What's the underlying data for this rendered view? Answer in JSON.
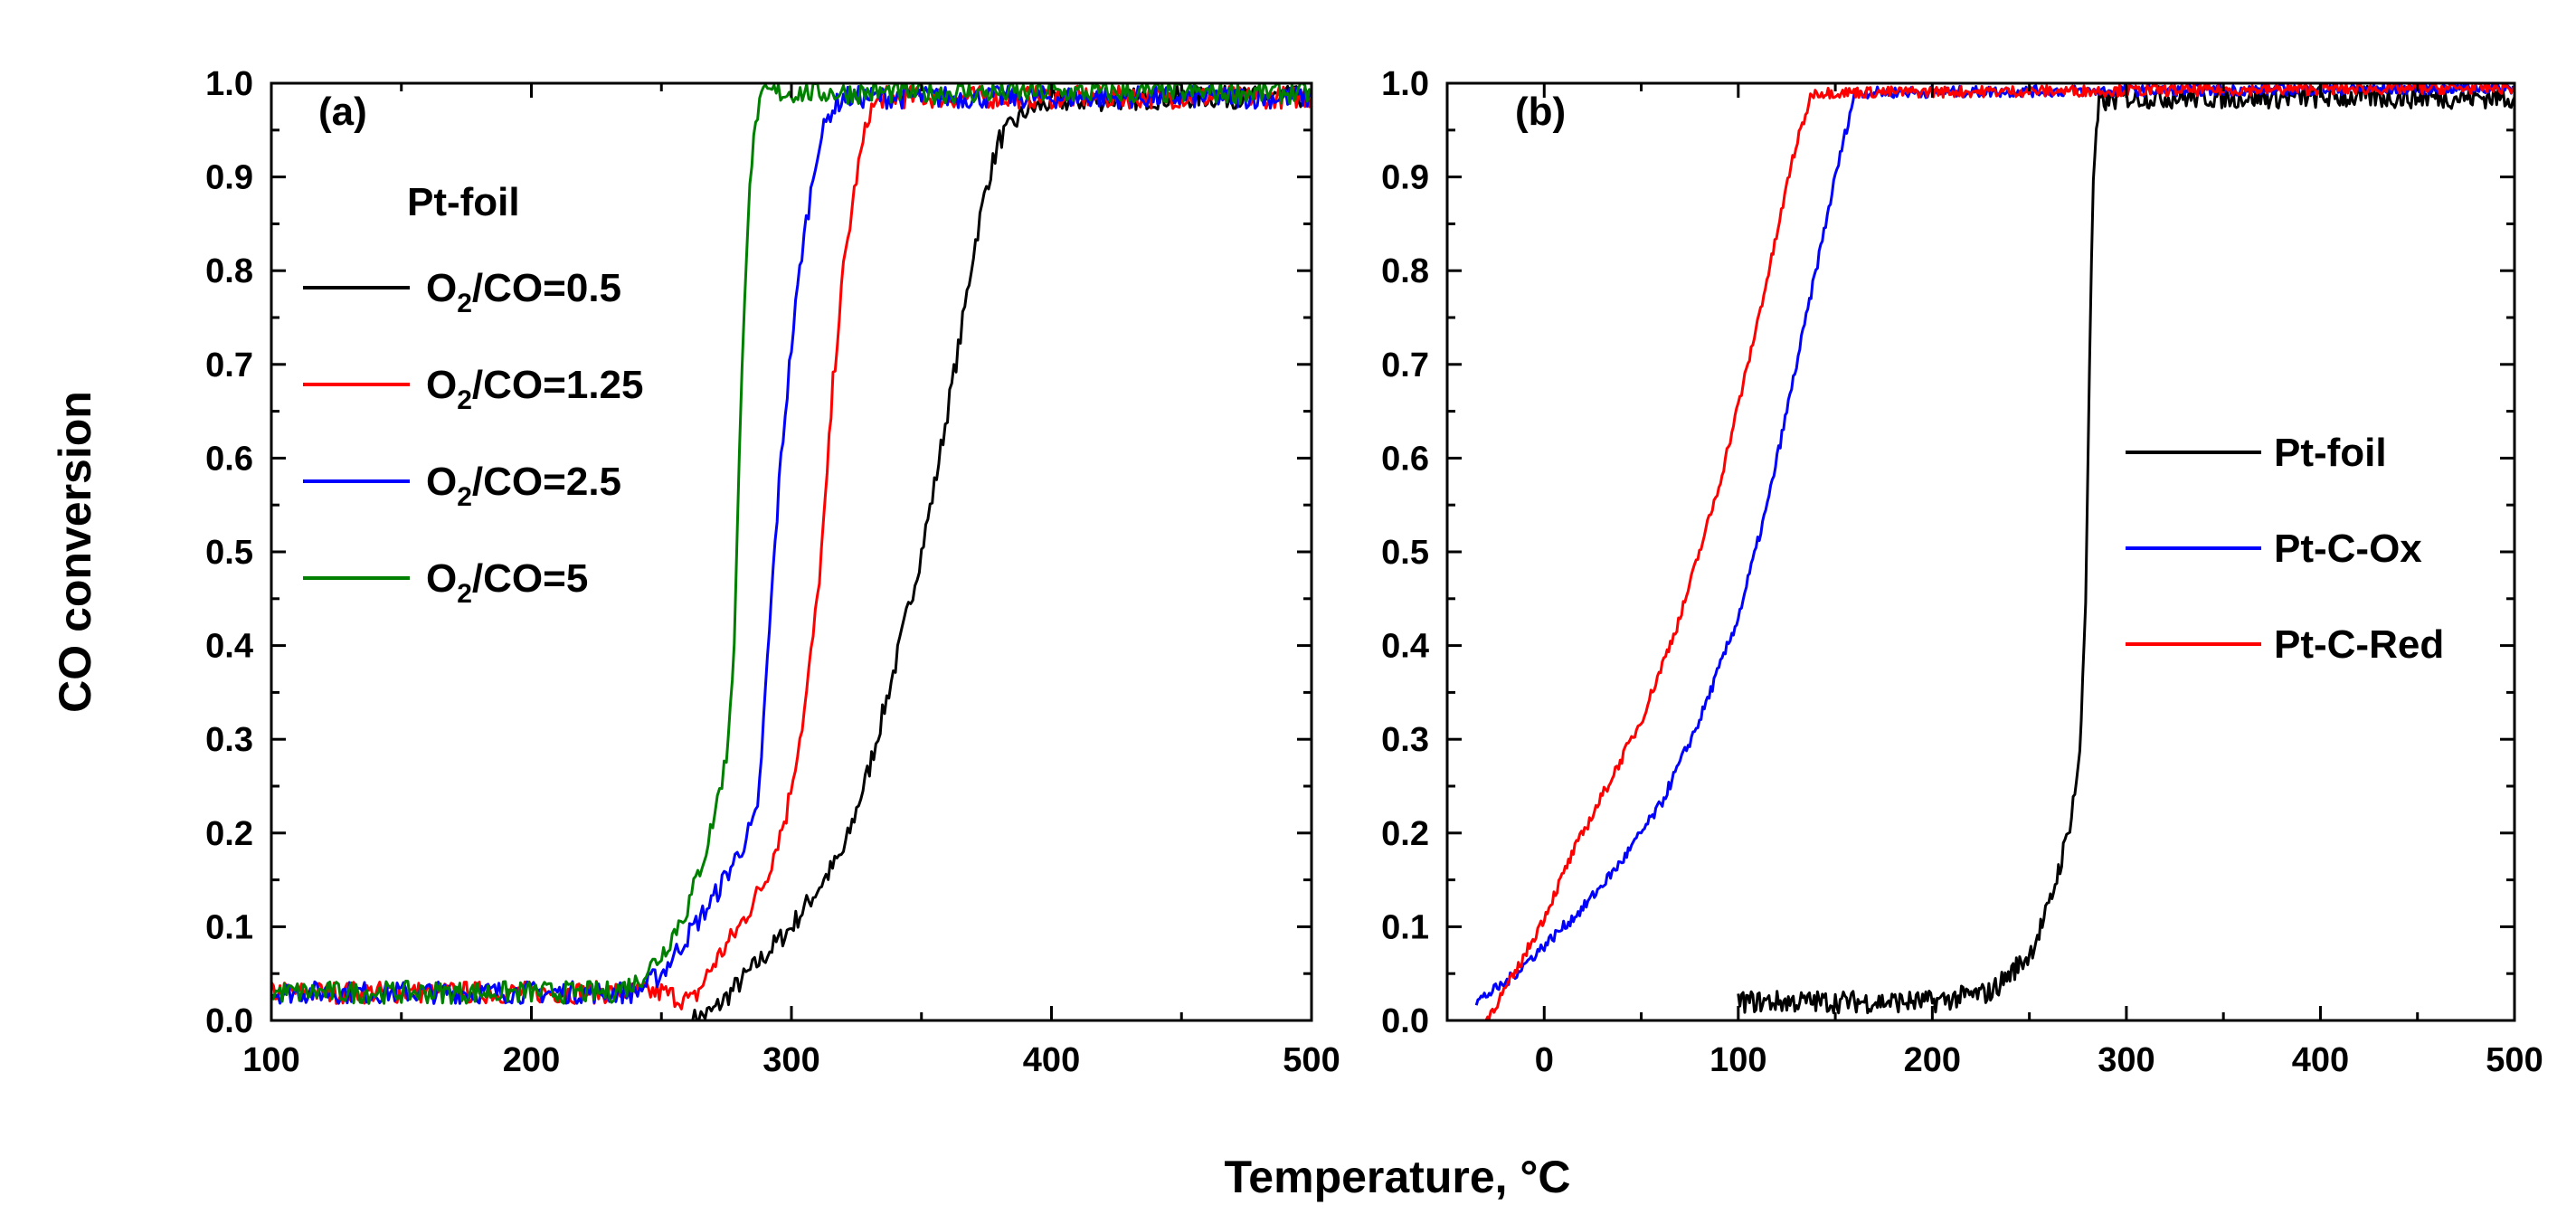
{
  "figure": {
    "ylabel": "CO conversion",
    "xlabel": "Temperature, °C"
  },
  "chart_data": [
    {
      "type": "line",
      "panel_label": "(a)",
      "legend_title": "Pt-foil",
      "legend_position": "top-left",
      "xlim": [
        100,
        500
      ],
      "ylim": [
        0,
        1.0
      ],
      "xticks": [
        "100",
        "200",
        "300",
        "400",
        "500"
      ],
      "yticks": [
        "0.0",
        "0.1",
        "0.2",
        "0.3",
        "0.4",
        "0.5",
        "0.6",
        "0.7",
        "0.8",
        "0.9",
        "1.0"
      ],
      "grid": false,
      "series": [
        {
          "name": "O2/CO=0.5",
          "legend_main": "O",
          "legend_sub": "2",
          "legend_rest": "/CO=0.5",
          "color": "#000000",
          "noise": 0.012,
          "points": [
            [
              262,
              0.0
            ],
            [
              270,
              0.01
            ],
            [
              280,
              0.04
            ],
            [
              290,
              0.07
            ],
            [
              300,
              0.1
            ],
            [
              310,
              0.14
            ],
            [
              320,
              0.18
            ],
            [
              330,
              0.27
            ],
            [
              340,
              0.38
            ],
            [
              350,
              0.5
            ],
            [
              355,
              0.57
            ],
            [
              360,
              0.65
            ],
            [
              365,
              0.73
            ],
            [
              370,
              0.82
            ],
            [
              375,
              0.89
            ],
            [
              380,
              0.94
            ],
            [
              390,
              0.97
            ],
            [
              400,
              0.98
            ],
            [
              450,
              0.985
            ],
            [
              500,
              0.985
            ]
          ]
        },
        {
          "name": "O2/CO=1.25",
          "legend_main": "O",
          "legend_sub": "2",
          "legend_rest": "/CO=1.25",
          "color": "#ff0000",
          "noise": 0.012,
          "points": [
            [
              100,
              0.03
            ],
            [
              250,
              0.03
            ],
            [
              262,
              0.02
            ],
            [
              270,
              0.06
            ],
            [
              280,
              0.1
            ],
            [
              290,
              0.15
            ],
            [
              298,
              0.22
            ],
            [
              305,
              0.33
            ],
            [
              310,
              0.45
            ],
            [
              313,
              0.55
            ],
            [
              316,
              0.68
            ],
            [
              320,
              0.8
            ],
            [
              325,
              0.9
            ],
            [
              330,
              0.97
            ],
            [
              335,
              0.985
            ],
            [
              400,
              0.985
            ],
            [
              500,
              0.985
            ]
          ]
        },
        {
          "name": "O2/CO=2.5",
          "legend_main": "O",
          "legend_sub": "2",
          "legend_rest": "/CO=2.5",
          "color": "#0000ff",
          "noise": 0.012,
          "points": [
            [
              100,
              0.03
            ],
            [
              240,
              0.03
            ],
            [
              250,
              0.05
            ],
            [
              260,
              0.09
            ],
            [
              270,
              0.13
            ],
            [
              280,
              0.18
            ],
            [
              287,
              0.22
            ],
            [
              290,
              0.35
            ],
            [
              293,
              0.48
            ],
            [
              296,
              0.6
            ],
            [
              300,
              0.72
            ],
            [
              304,
              0.82
            ],
            [
              310,
              0.93
            ],
            [
              315,
              0.97
            ],
            [
              320,
              0.985
            ],
            [
              400,
              0.985
            ],
            [
              500,
              0.985
            ]
          ]
        },
        {
          "name": "O2/CO=5",
          "legend_main": "O",
          "legend_sub": "2",
          "legend_rest": "/CO=5",
          "color": "#008000",
          "noise": 0.012,
          "points": [
            [
              100,
              0.03
            ],
            [
              230,
              0.03
            ],
            [
              240,
              0.04
            ],
            [
              250,
              0.07
            ],
            [
              260,
              0.12
            ],
            [
              268,
              0.19
            ],
            [
              275,
              0.28
            ],
            [
              278,
              0.4
            ],
            [
              280,
              0.6
            ],
            [
              282,
              0.78
            ],
            [
              284,
              0.9
            ],
            [
              287,
              0.97
            ],
            [
              290,
              0.99
            ],
            [
              500,
              0.99
            ]
          ]
        }
      ]
    },
    {
      "type": "line",
      "panel_label": "(b)",
      "legend_position": "center-right",
      "xlim": [
        -50,
        500
      ],
      "ylim": [
        0,
        1.0
      ],
      "xticks": [
        "0",
        "100",
        "200",
        "300",
        "400",
        "500"
      ],
      "yticks": [
        "0.0",
        "0.1",
        "0.2",
        "0.3",
        "0.4",
        "0.5",
        "0.6",
        "0.7",
        "0.8",
        "0.9",
        "1.0"
      ],
      "grid": false,
      "series": [
        {
          "name": "Pt-foil",
          "legend_main": "Pt-foil",
          "color": "#000000",
          "noise": 0.012,
          "points": [
            [
              100,
              0.02
            ],
            [
              200,
              0.02
            ],
            [
              230,
              0.03
            ],
            [
              250,
              0.07
            ],
            [
              260,
              0.12
            ],
            [
              270,
              0.2
            ],
            [
              276,
              0.28
            ],
            [
              279,
              0.45
            ],
            [
              281,
              0.7
            ],
            [
              283,
              0.9
            ],
            [
              286,
              0.98
            ],
            [
              300,
              0.985
            ],
            [
              500,
              0.985
            ]
          ]
        },
        {
          "name": "Pt-C-Ox",
          "legend_main": "Pt-C-Ox",
          "color": "#0000ff",
          "noise": 0.006,
          "points": [
            [
              -35,
              0.02
            ],
            [
              -20,
              0.04
            ],
            [
              0,
              0.08
            ],
            [
              20,
              0.12
            ],
            [
              40,
              0.17
            ],
            [
              60,
              0.23
            ],
            [
              80,
              0.32
            ],
            [
              100,
              0.43
            ],
            [
              115,
              0.55
            ],
            [
              130,
              0.7
            ],
            [
              140,
              0.8
            ],
            [
              150,
              0.9
            ],
            [
              160,
              0.99
            ],
            [
              500,
              0.995
            ]
          ]
        },
        {
          "name": "Pt-C-Red",
          "legend_main": "Pt-C-Red",
          "color": "#ff0000",
          "noise": 0.006,
          "points": [
            [
              -30,
              0.0
            ],
            [
              -15,
              0.05
            ],
            [
              0,
              0.11
            ],
            [
              15,
              0.18
            ],
            [
              30,
              0.24
            ],
            [
              50,
              0.32
            ],
            [
              70,
              0.43
            ],
            [
              90,
              0.57
            ],
            [
              105,
              0.7
            ],
            [
              118,
              0.82
            ],
            [
              128,
              0.92
            ],
            [
              138,
              0.99
            ],
            [
              500,
              0.995
            ]
          ]
        }
      ]
    }
  ]
}
